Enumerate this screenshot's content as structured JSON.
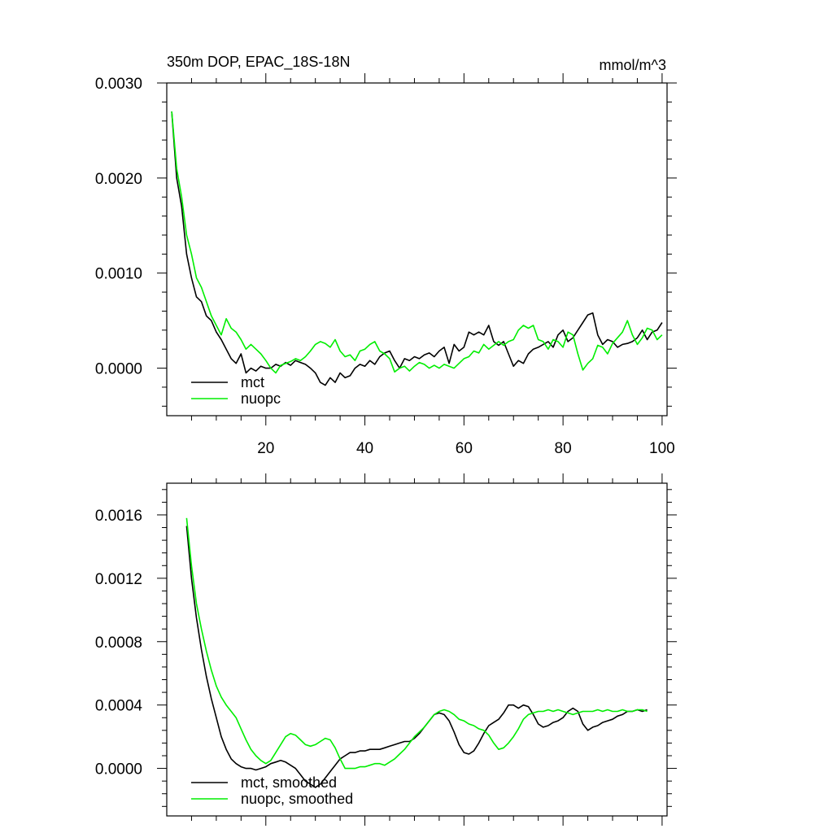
{
  "figure": {
    "title": "350m DOP, EPAC_18S-18N",
    "units": "mmol/m^3"
  },
  "chart_data": [
    {
      "type": "line",
      "title": "350m DOP, EPAC_18S-18N",
      "units_label": "mmol/m^3",
      "xlabel": "",
      "ylabel": "",
      "xlim": [
        0,
        101
      ],
      "ylim": [
        -0.0005,
        0.003
      ],
      "x_ticks": [
        20,
        40,
        60,
        80,
        100
      ],
      "x_tick_labels": [
        "20",
        "40",
        "60",
        "80",
        "100"
      ],
      "y_ticks": [
        0.0,
        0.001,
        0.002,
        0.003
      ],
      "y_tick_labels": [
        "0.0000",
        "0.0010",
        "0.0020",
        "0.0030"
      ],
      "legend_position": "bottom-left",
      "series": [
        {
          "name": "mct",
          "color": "#000000",
          "x": [
            1,
            2,
            3,
            4,
            5,
            6,
            7,
            8,
            9,
            10,
            11,
            12,
            13,
            14,
            15,
            16,
            17,
            18,
            19,
            20,
            21,
            22,
            23,
            24,
            25,
            26,
            27,
            28,
            29,
            30,
            31,
            32,
            33,
            34,
            35,
            36,
            37,
            38,
            39,
            40,
            41,
            42,
            43,
            44,
            45,
            46,
            47,
            48,
            49,
            50,
            51,
            52,
            53,
            54,
            55,
            56,
            57,
            58,
            59,
            60,
            61,
            62,
            63,
            64,
            65,
            66,
            67,
            68,
            69,
            70,
            71,
            72,
            73,
            74,
            75,
            76,
            77,
            78,
            79,
            80,
            81,
            82,
            83,
            84,
            85,
            86,
            87,
            88,
            89,
            90,
            91,
            92,
            93,
            94,
            95,
            96,
            97,
            98,
            99,
            100
          ],
          "values": [
            0.0027,
            0.002,
            0.0017,
            0.0012,
            0.00095,
            0.00075,
            0.0007,
            0.00055,
            0.0005,
            0.00038,
            0.0003,
            0.0002,
            0.0001,
            5e-05,
            0.00015,
            -5e-05,
            0.0,
            -3e-05,
            2e-05,
            0.0,
            0.0,
            4e-05,
            2e-05,
            6e-05,
            3e-05,
            8e-05,
            6e-05,
            4e-05,
            0.0,
            -5e-05,
            -0.00015,
            -0.00018,
            -0.0001,
            -0.00015,
            -5e-05,
            -0.0001,
            -8e-05,
            0.0,
            4e-05,
            2e-05,
            8e-05,
            4e-05,
            0.00012,
            0.00016,
            0.00018,
            8e-05,
            0.0,
            0.0001,
            8e-05,
            0.00012,
            0.0001,
            0.00014,
            0.00016,
            0.00012,
            0.00018,
            0.00022,
            5e-05,
            0.00025,
            0.00018,
            0.00022,
            0.00038,
            0.00035,
            0.00038,
            0.00035,
            0.00045,
            0.00028,
            0.00024,
            0.00028,
            0.00015,
            2e-05,
            8e-05,
            5e-05,
            0.00015,
            0.0002,
            0.00022,
            0.00025,
            0.00028,
            0.00022,
            0.00035,
            0.0004,
            0.00028,
            0.00032,
            0.0004,
            0.00048,
            0.00056,
            0.00058,
            0.00035,
            0.00025,
            0.0003,
            0.00028,
            0.00022,
            0.00025,
            0.00026,
            0.00028,
            0.00032,
            0.0004,
            0.0003,
            0.00038,
            0.0004,
            0.00048
          ]
        },
        {
          "name": "nuopc",
          "color": "#00ee00",
          "x": [
            1,
            2,
            3,
            4,
            5,
            6,
            7,
            8,
            9,
            10,
            11,
            12,
            13,
            14,
            15,
            16,
            17,
            18,
            19,
            20,
            21,
            22,
            23,
            24,
            25,
            26,
            27,
            28,
            29,
            30,
            31,
            32,
            33,
            34,
            35,
            36,
            37,
            38,
            39,
            40,
            41,
            42,
            43,
            44,
            45,
            46,
            47,
            48,
            49,
            50,
            51,
            52,
            53,
            54,
            55,
            56,
            57,
            58,
            59,
            60,
            61,
            62,
            63,
            64,
            65,
            66,
            67,
            68,
            69,
            70,
            71,
            72,
            73,
            74,
            75,
            76,
            77,
            78,
            79,
            80,
            81,
            82,
            83,
            84,
            85,
            86,
            87,
            88,
            89,
            90,
            91,
            92,
            93,
            94,
            95,
            96,
            97,
            98,
            99,
            100
          ],
          "values": [
            0.0027,
            0.0021,
            0.0018,
            0.0014,
            0.0012,
            0.00095,
            0.00085,
            0.0007,
            0.00055,
            0.00045,
            0.00035,
            0.00052,
            0.00042,
            0.00038,
            0.0003,
            0.0002,
            0.00025,
            0.0002,
            0.00015,
            8e-05,
            0.0,
            -5e-05,
            3e-05,
            5e-05,
            7e-05,
            0.0001,
            8e-05,
            0.00012,
            0.00018,
            0.00025,
            0.00028,
            0.00026,
            0.00022,
            0.0003,
            0.00018,
            0.00012,
            0.00014,
            8e-05,
            0.00018,
            0.0002,
            0.00025,
            0.00028,
            0.00018,
            0.00015,
            0.0001,
            -4e-05,
            0.0,
            2e-05,
            -3e-05,
            2e-05,
            6e-05,
            4e-05,
            0.0,
            3e-05,
            0.0,
            4e-05,
            2e-05,
            0.0,
            5e-05,
            0.0001,
            0.00012,
            0.00018,
            0.00016,
            0.00025,
            0.0002,
            0.00024,
            0.00028,
            0.00024,
            0.00028,
            0.0003,
            0.0004,
            0.00045,
            0.00042,
            0.00045,
            0.0003,
            0.00028,
            0.0002,
            0.0003,
            0.00028,
            0.00022,
            0.00038,
            0.00035,
            0.00015,
            -2e-05,
            5e-05,
            0.0001,
            0.00024,
            0.00022,
            0.00015,
            0.00026,
            0.00032,
            0.00038,
            0.0005,
            0.00035,
            0.00025,
            0.00032,
            0.00042,
            0.0004,
            0.0003,
            0.00035
          ]
        }
      ]
    },
    {
      "type": "line",
      "title": "",
      "xlabel": "",
      "ylabel": "",
      "xlim": [
        0,
        101
      ],
      "ylim": [
        -0.0003,
        0.0018
      ],
      "x_ticks": [
        20,
        40,
        60,
        80,
        100
      ],
      "y_ticks": [
        0.0,
        0.0004,
        0.0008,
        0.0012,
        0.0016
      ],
      "y_tick_labels": [
        "0.0000",
        "0.0004",
        "0.0008",
        "0.0012",
        "0.0016"
      ],
      "legend_position": "bottom-left",
      "series": [
        {
          "name": "mct, smoothed",
          "color": "#000000",
          "x": [
            4,
            5,
            6,
            7,
            8,
            9,
            10,
            11,
            12,
            13,
            14,
            15,
            16,
            17,
            18,
            19,
            20,
            21,
            22,
            23,
            24,
            25,
            26,
            27,
            28,
            29,
            30,
            31,
            32,
            33,
            34,
            35,
            36,
            37,
            38,
            39,
            40,
            41,
            42,
            43,
            44,
            45,
            46,
            47,
            48,
            49,
            50,
            51,
            52,
            53,
            54,
            55,
            56,
            57,
            58,
            59,
            60,
            61,
            62,
            63,
            64,
            65,
            66,
            67,
            68,
            69,
            70,
            71,
            72,
            73,
            74,
            75,
            76,
            77,
            78,
            79,
            80,
            81,
            82,
            83,
            84,
            85,
            86,
            87,
            88,
            89,
            90,
            91,
            92,
            93,
            94,
            95,
            96,
            97
          ],
          "values": [
            0.00153,
            0.0012,
            0.00095,
            0.00075,
            0.00058,
            0.00044,
            0.00032,
            0.0002,
            0.00012,
            6e-05,
            3e-05,
            1e-05,
            0.0,
            0.0,
            -1e-05,
            0.0,
            1e-05,
            3e-05,
            4e-05,
            5e-05,
            4e-05,
            2e-05,
            0.0,
            -4e-05,
            -8e-05,
            -0.0001,
            -0.00012,
            -0.0001,
            -6e-05,
            -2e-05,
            2e-05,
            6e-05,
            8e-05,
            0.0001,
            0.0001,
            0.00011,
            0.00011,
            0.00012,
            0.00012,
            0.00012,
            0.00013,
            0.00014,
            0.00015,
            0.00016,
            0.00017,
            0.00017,
            0.00019,
            0.00022,
            0.00026,
            0.0003,
            0.00034,
            0.00035,
            0.00034,
            0.0003,
            0.00023,
            0.00015,
            0.0001,
            9e-05,
            0.00011,
            0.00016,
            0.00022,
            0.00027,
            0.00029,
            0.00031,
            0.00035,
            0.0004,
            0.0004,
            0.00038,
            0.0004,
            0.00039,
            0.00034,
            0.00028,
            0.00026,
            0.00027,
            0.00029,
            0.0003,
            0.00032,
            0.00036,
            0.00038,
            0.00036,
            0.00028,
            0.00024,
            0.00026,
            0.00027,
            0.00029,
            0.0003,
            0.00031,
            0.00033,
            0.00034,
            0.00036,
            0.00036,
            0.00037,
            0.00036,
            0.00037
          ]
        },
        {
          "name": "nuopc, smoothed",
          "color": "#00ee00",
          "x": [
            4,
            5,
            6,
            7,
            8,
            9,
            10,
            11,
            12,
            13,
            14,
            15,
            16,
            17,
            18,
            19,
            20,
            21,
            22,
            23,
            24,
            25,
            26,
            27,
            28,
            29,
            30,
            31,
            32,
            33,
            34,
            35,
            36,
            37,
            38,
            39,
            40,
            41,
            42,
            43,
            44,
            45,
            46,
            47,
            48,
            49,
            50,
            51,
            52,
            53,
            54,
            55,
            56,
            57,
            58,
            59,
            60,
            61,
            62,
            63,
            64,
            65,
            66,
            67,
            68,
            69,
            70,
            71,
            72,
            73,
            74,
            75,
            76,
            77,
            78,
            79,
            80,
            81,
            82,
            83,
            84,
            85,
            86,
            87,
            88,
            89,
            90,
            91,
            92,
            93,
            94,
            95,
            96,
            97
          ],
          "values": [
            0.00158,
            0.00128,
            0.00104,
            0.00088,
            0.00074,
            0.00062,
            0.00052,
            0.00045,
            0.0004,
            0.00036,
            0.00032,
            0.00025,
            0.00018,
            0.00012,
            8e-05,
            5e-05,
            3e-05,
            5e-05,
            0.0001,
            0.00015,
            0.0002,
            0.00022,
            0.00021,
            0.00018,
            0.00015,
            0.00014,
            0.00015,
            0.00017,
            0.00019,
            0.00018,
            0.00013,
            6e-05,
            0.0,
            0.0,
            0.0,
            1e-05,
            1e-05,
            2e-05,
            3e-05,
            3e-05,
            2e-05,
            4e-05,
            6e-05,
            9e-05,
            0.00012,
            0.00016,
            0.0002,
            0.00023,
            0.00026,
            0.0003,
            0.00034,
            0.00036,
            0.00037,
            0.00036,
            0.00034,
            0.00031,
            0.0003,
            0.00028,
            0.00027,
            0.00025,
            0.00024,
            0.00021,
            0.00016,
            0.00012,
            0.00013,
            0.00016,
            0.0002,
            0.00025,
            0.00031,
            0.00034,
            0.00035,
            0.00036,
            0.00036,
            0.00037,
            0.00036,
            0.00037,
            0.00036,
            0.00035,
            0.00034,
            0.00035,
            0.00036,
            0.00036,
            0.00036,
            0.00037,
            0.00036,
            0.00037,
            0.00036,
            0.00036,
            0.00037,
            0.00036,
            0.00036,
            0.00037,
            0.00037,
            0.00036
          ]
        }
      ]
    }
  ]
}
